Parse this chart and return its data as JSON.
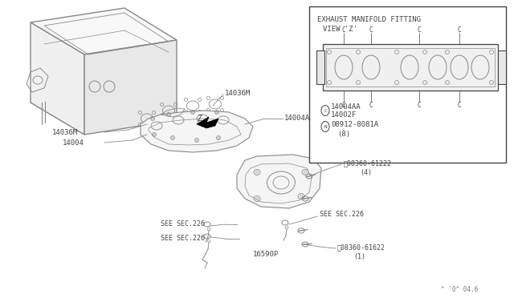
{
  "bg_color": "#ffffff",
  "line_color": "#888888",
  "dark_color": "#444444",
  "text_color": "#555555",
  "watermark": "^ '0^ 04.6",
  "inset_title_line1": "EXHAUST MANIFOLD FITTING",
  "inset_title_line2": "VIEW 'Z'",
  "inset_legend_c1": "14004AA",
  "inset_legend_c2": "14002F",
  "inset_legend_n": "08912-8081A",
  "inset_legend_n2": "(8)"
}
